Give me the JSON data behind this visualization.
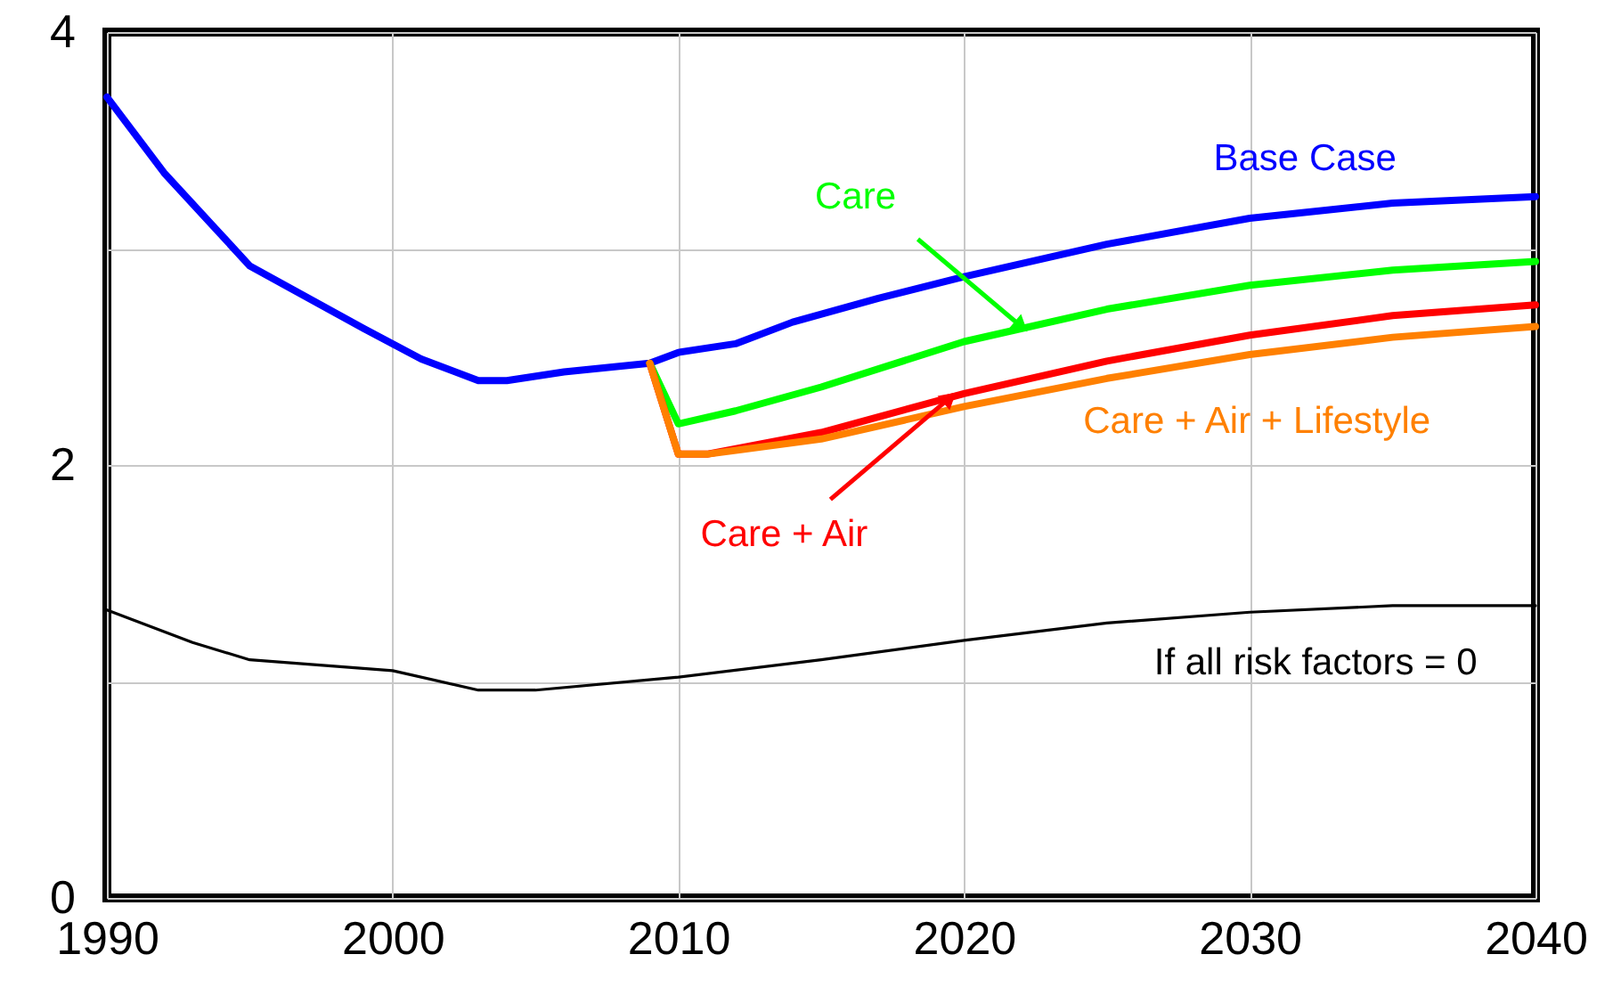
{
  "chart_data": {
    "type": "line",
    "xlim": [
      1990,
      2040
    ],
    "xticks": [
      1990,
      2000,
      2010,
      2020,
      2030,
      2040
    ],
    "ylim": [
      0,
      4
    ],
    "yticks": [
      0,
      {
        "value": 1,
        "label": null
      },
      2,
      {
        "value": 3,
        "label": null
      },
      4
    ],
    "grid": true,
    "series": [
      {
        "color": "#0000ff",
        "x": [
          1990,
          1992,
          1995,
          1999,
          2001,
          2003,
          2004,
          2006,
          2009,
          2010,
          2012,
          2014,
          2017,
          2020,
          2025,
          2030,
          2035,
          2040
        ],
        "values": [
          3.7,
          3.35,
          2.92,
          2.63,
          2.49,
          2.39,
          2.39,
          2.43,
          2.47,
          2.52,
          2.56,
          2.66,
          2.77,
          2.87,
          3.02,
          3.14,
          3.21,
          3.24
        ]
      },
      {
        "color": "#00ff00",
        "x": [
          2009,
          2010,
          2012,
          2015,
          2020,
          2025,
          2030,
          2035,
          2040
        ],
        "values": [
          2.47,
          2.19,
          2.25,
          2.36,
          2.57,
          2.72,
          2.83,
          2.9,
          2.94
        ]
      },
      {
        "color": "#ff0000",
        "x": [
          2009,
          2010,
          2011,
          2015,
          2020,
          2025,
          2030,
          2035,
          2040
        ],
        "values": [
          2.47,
          2.05,
          2.05,
          2.15,
          2.33,
          2.48,
          2.6,
          2.69,
          2.74
        ]
      },
      {
        "color": "#ff8000",
        "x": [
          2009,
          2010,
          2011,
          2015,
          2020,
          2025,
          2030,
          2035,
          2040
        ],
        "values": [
          2.47,
          2.05,
          2.05,
          2.12,
          2.27,
          2.4,
          2.51,
          2.59,
          2.64
        ]
      },
      {
        "color": "#000000",
        "x": [
          1990,
          1993,
          1995,
          2000,
          2003,
          2005,
          2010,
          2015,
          2020,
          2025,
          2030,
          2035,
          2040
        ],
        "values": [
          1.33,
          1.18,
          1.1,
          1.05,
          0.96,
          0.96,
          1.02,
          1.1,
          1.19,
          1.27,
          1.32,
          1.35,
          1.35
        ]
      }
    ],
    "annotations": [
      {
        "text": "Base Case",
        "x": 2030,
        "y": 3.14
      },
      {
        "text": "Care",
        "x": 2022,
        "y": 2.64
      },
      {
        "text": "Care + Air",
        "x": 2019.5,
        "y": 2.31
      },
      {
        "text": "Care + Air + Lifestyle",
        "x": 2030,
        "y": 2.51
      },
      {
        "text": "If all risk factors = 0",
        "x": 2030,
        "y": 1.32
      }
    ]
  }
}
